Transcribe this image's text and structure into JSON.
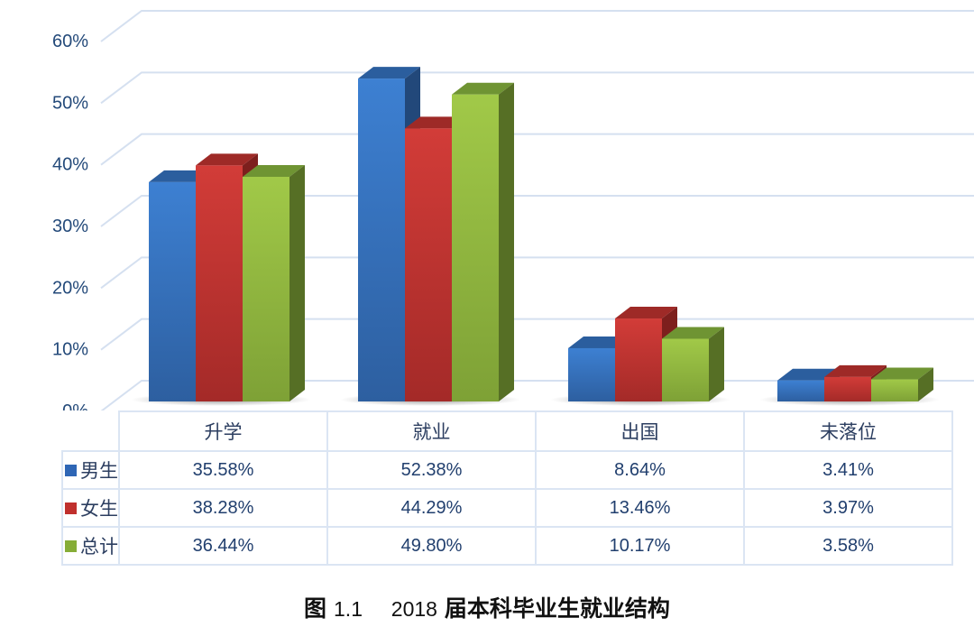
{
  "chart_data": {
    "type": "bar",
    "style": "3d-clustered-column-with-data-table",
    "title": "图 1.1 2018 届本科毕业生就业结构",
    "categories": [
      "升学",
      "就业",
      "出国",
      "未落位"
    ],
    "series": [
      {
        "name": "男生",
        "color": "#3a78c9",
        "values": [
          35.58,
          52.38,
          8.64,
          3.41
        ]
      },
      {
        "name": "女生",
        "color": "#cc3a36",
        "values": [
          38.28,
          44.29,
          13.46,
          3.97
        ]
      },
      {
        "name": "总计",
        "color": "#97bf3f",
        "values": [
          36.44,
          49.8,
          10.17,
          3.58
        ]
      }
    ],
    "xlabel": "",
    "ylabel": "",
    "ylim": [
      0,
      60
    ],
    "yticks": [
      "0%",
      "10%",
      "20%",
      "30%",
      "40%",
      "50%",
      "60%"
    ],
    "grid": true,
    "legend_position": "data-table-left"
  },
  "table": {
    "headers": [
      "升学",
      "就业",
      "出国",
      "未落位"
    ],
    "rows": [
      {
        "label": "男生",
        "color": "#2e66b5",
        "cells": [
          "35.58%",
          "52.38%",
          "8.64%",
          "3.41%"
        ]
      },
      {
        "label": "女生",
        "color": "#c0302d",
        "cells": [
          "38.28%",
          "44.29%",
          "13.46%",
          "3.97%"
        ]
      },
      {
        "label": "总计",
        "color": "#86ad37",
        "cells": [
          "36.44%",
          "49.80%",
          "10.17%",
          "3.58%"
        ]
      }
    ]
  },
  "caption": {
    "fig_label": "图",
    "fig_number": "1.1",
    "year": "2018",
    "text": "届本科毕业生就业结构"
  }
}
